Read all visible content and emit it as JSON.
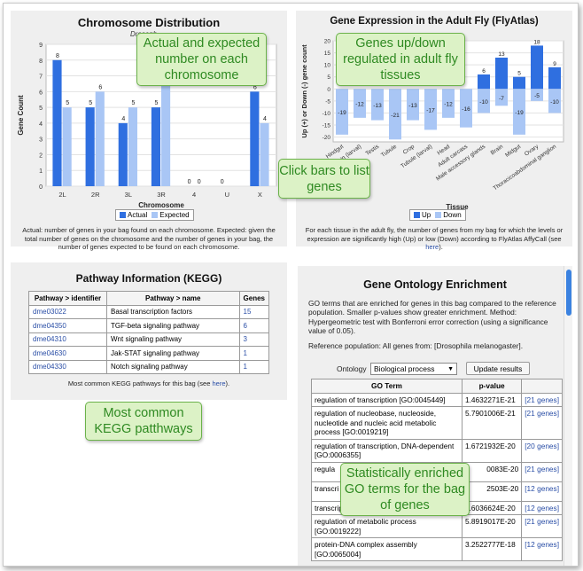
{
  "chromosome": {
    "title": "Chromosome Distribution",
    "subtitle": "Drosoph",
    "caption": "Actual: number of genes in your bag found on each chromosome. Expected: given the total number of genes on the chromosome and the number of genes in your bag, the number of genes expected to be found on each chromosome.",
    "legend": {
      "actual": "Actual",
      "expected": "Expected"
    }
  },
  "flyatlas": {
    "title": "Gene Expression in the Adult Fly (FlyAtlas)",
    "caption_pre": "For each tissue in the adult fly, the number of genes from my bag for which the levels or expression are significantly high (Up) or low (Down) according to FlyAtlas AffyCall (see ",
    "caption_link": "here",
    "caption_post": ").",
    "legend": {
      "up": "Up",
      "down": "Down"
    }
  },
  "kegg": {
    "title": "Pathway Information (KEGG)",
    "headers": [
      "Pathway > identifier",
      "Pathway > name",
      "Genes"
    ],
    "rows": [
      [
        "dme03022",
        "Basal transcription factors",
        "15"
      ],
      [
        "dme04350",
        "TGF-beta signaling pathway",
        "6"
      ],
      [
        "dme04310",
        "Wnt signaling pathway",
        "3"
      ],
      [
        "dme04630",
        "Jak-STAT signaling pathway",
        "1"
      ],
      [
        "dme04330",
        "Notch signaling pathway",
        "1"
      ]
    ],
    "caption_pre": "Most common KEGG pathways for this bag (see ",
    "caption_link": "here",
    "caption_post": ")."
  },
  "go": {
    "title": "Gene Ontology Enrichment",
    "description": "GO terms that are enriched for genes in this bag compared to the reference population. Smaller p-values show greater enrichment. Method: Hypergeometric test with Bonferroni error correction (using a significance value of 0.05).",
    "reference": "Reference population: All genes from: [Drosophila melanogaster].",
    "ontology_label": "Ontology",
    "ontology_value": "Biological process",
    "update_button": "Update results",
    "headers": [
      "GO Term",
      "p-value"
    ],
    "rows": [
      [
        "regulation of transcription [GO:0045449]",
        "1.4632271E-21",
        "[21 genes]"
      ],
      [
        "regulation of nucleobase, nucleoside, nucleotide and nucleic acid metabolic process [GO:0019219]",
        "5.7901006E-21",
        "[21 genes]"
      ],
      [
        "regulation of transcription, DNA-dependent [GO:0006355]",
        "1.6721932E-20",
        "[20 genes]"
      ],
      [
        "regula",
        "0083E-20",
        "[21 genes]"
      ],
      [
        "transcri polyme",
        "2503E-20",
        "[12 genes]"
      ],
      [
        "transcription initiation [GO:0006352]",
        "3.6036624E-20",
        "[12 genes]"
      ],
      [
        "regulation of metabolic process [GO:0019222]",
        "5.8919017E-20",
        "[21 genes]"
      ],
      [
        "protein-DNA complex assembly [GO:0065004]",
        "3.2522777E-18",
        "[12 genes]"
      ]
    ]
  },
  "callouts": {
    "actual_expected": "Actual and expected number on each chromosome",
    "genes_updown": "Genes up/down regulated in adult fly tissues",
    "click_bars": "Click bars to list genes",
    "kegg_common": "Most common KEGG patthways",
    "go_enriched": "Statistically enriched GO terms for the bag of genes"
  },
  "colors": {
    "actual": "#2f6fe0",
    "expected": "#a9c6f5",
    "up": "#2f6fe0",
    "down": "#a9c6f5",
    "callout_bg": "#dcf2c6",
    "callout_text": "#2f8a22",
    "link": "#2a4ea6"
  },
  "chart_data": [
    {
      "type": "bar",
      "title": "Chromosome Distribution",
      "xlabel": "Chromosome",
      "ylabel": "Gene Count",
      "categories": [
        "2L",
        "2R",
        "3L",
        "3R",
        "4",
        "U",
        "X"
      ],
      "series": [
        {
          "name": "Actual",
          "values": [
            8,
            5,
            4,
            5,
            0,
            0,
            6
          ]
        },
        {
          "name": "Expected",
          "values": [
            5,
            6,
            5,
            7,
            0,
            0,
            4
          ]
        }
      ],
      "data_labels": {
        "Actual": [
          "8",
          "5",
          "4",
          "5",
          "0",
          "0",
          "6"
        ],
        "Expected": [
          "5",
          "6",
          "5",
          "",
          "0",
          "",
          "4"
        ]
      },
      "yticks": [
        "0",
        "1",
        "2",
        "3",
        "4",
        "5",
        "6",
        "7",
        "8",
        "9"
      ],
      "ylim": [
        0,
        9
      ],
      "legend": "bottom"
    },
    {
      "type": "bar",
      "title": "Gene Expression in the Adult Fly (FlyAtlas)",
      "xlabel": "Tissue",
      "ylabel": "Up (+) or Down (-) gene count",
      "categories": [
        "Hindgut",
        "Brain (larval)",
        "Testis",
        "Tubule",
        "Crop",
        "Tubule (larval)",
        "Head",
        "Adult carcass",
        "Male accessory glands",
        "Brain",
        "Midgut",
        "Ovary",
        "Thoracicoabdominal ganglion"
      ],
      "series": [
        {
          "name": "Up",
          "values": [
            0,
            0,
            0,
            0,
            0,
            0,
            0,
            0,
            6,
            13,
            5,
            18,
            9
          ]
        },
        {
          "name": "Down",
          "values": [
            -19,
            -12,
            -13,
            -21,
            -13,
            -17,
            -12,
            -16,
            -10,
            -7,
            -19,
            -5,
            -10
          ]
        }
      ],
      "data_labels": {
        "Up": [
          "",
          "",
          "",
          "",
          "",
          "",
          "",
          "",
          "6",
          "13",
          "5",
          "18",
          "9"
        ],
        "Down": [
          "-19",
          "-12",
          "-13",
          "-21",
          "-13",
          "-17",
          "-12",
          "-16",
          "-10",
          "-7",
          "-19",
          "-5",
          "-10"
        ]
      },
      "yticks": [
        "-20",
        "-15",
        "-10",
        "-5",
        "0",
        "5",
        "10",
        "15",
        "20"
      ],
      "ylim": [
        -22,
        20
      ],
      "legend": "bottom"
    }
  ]
}
